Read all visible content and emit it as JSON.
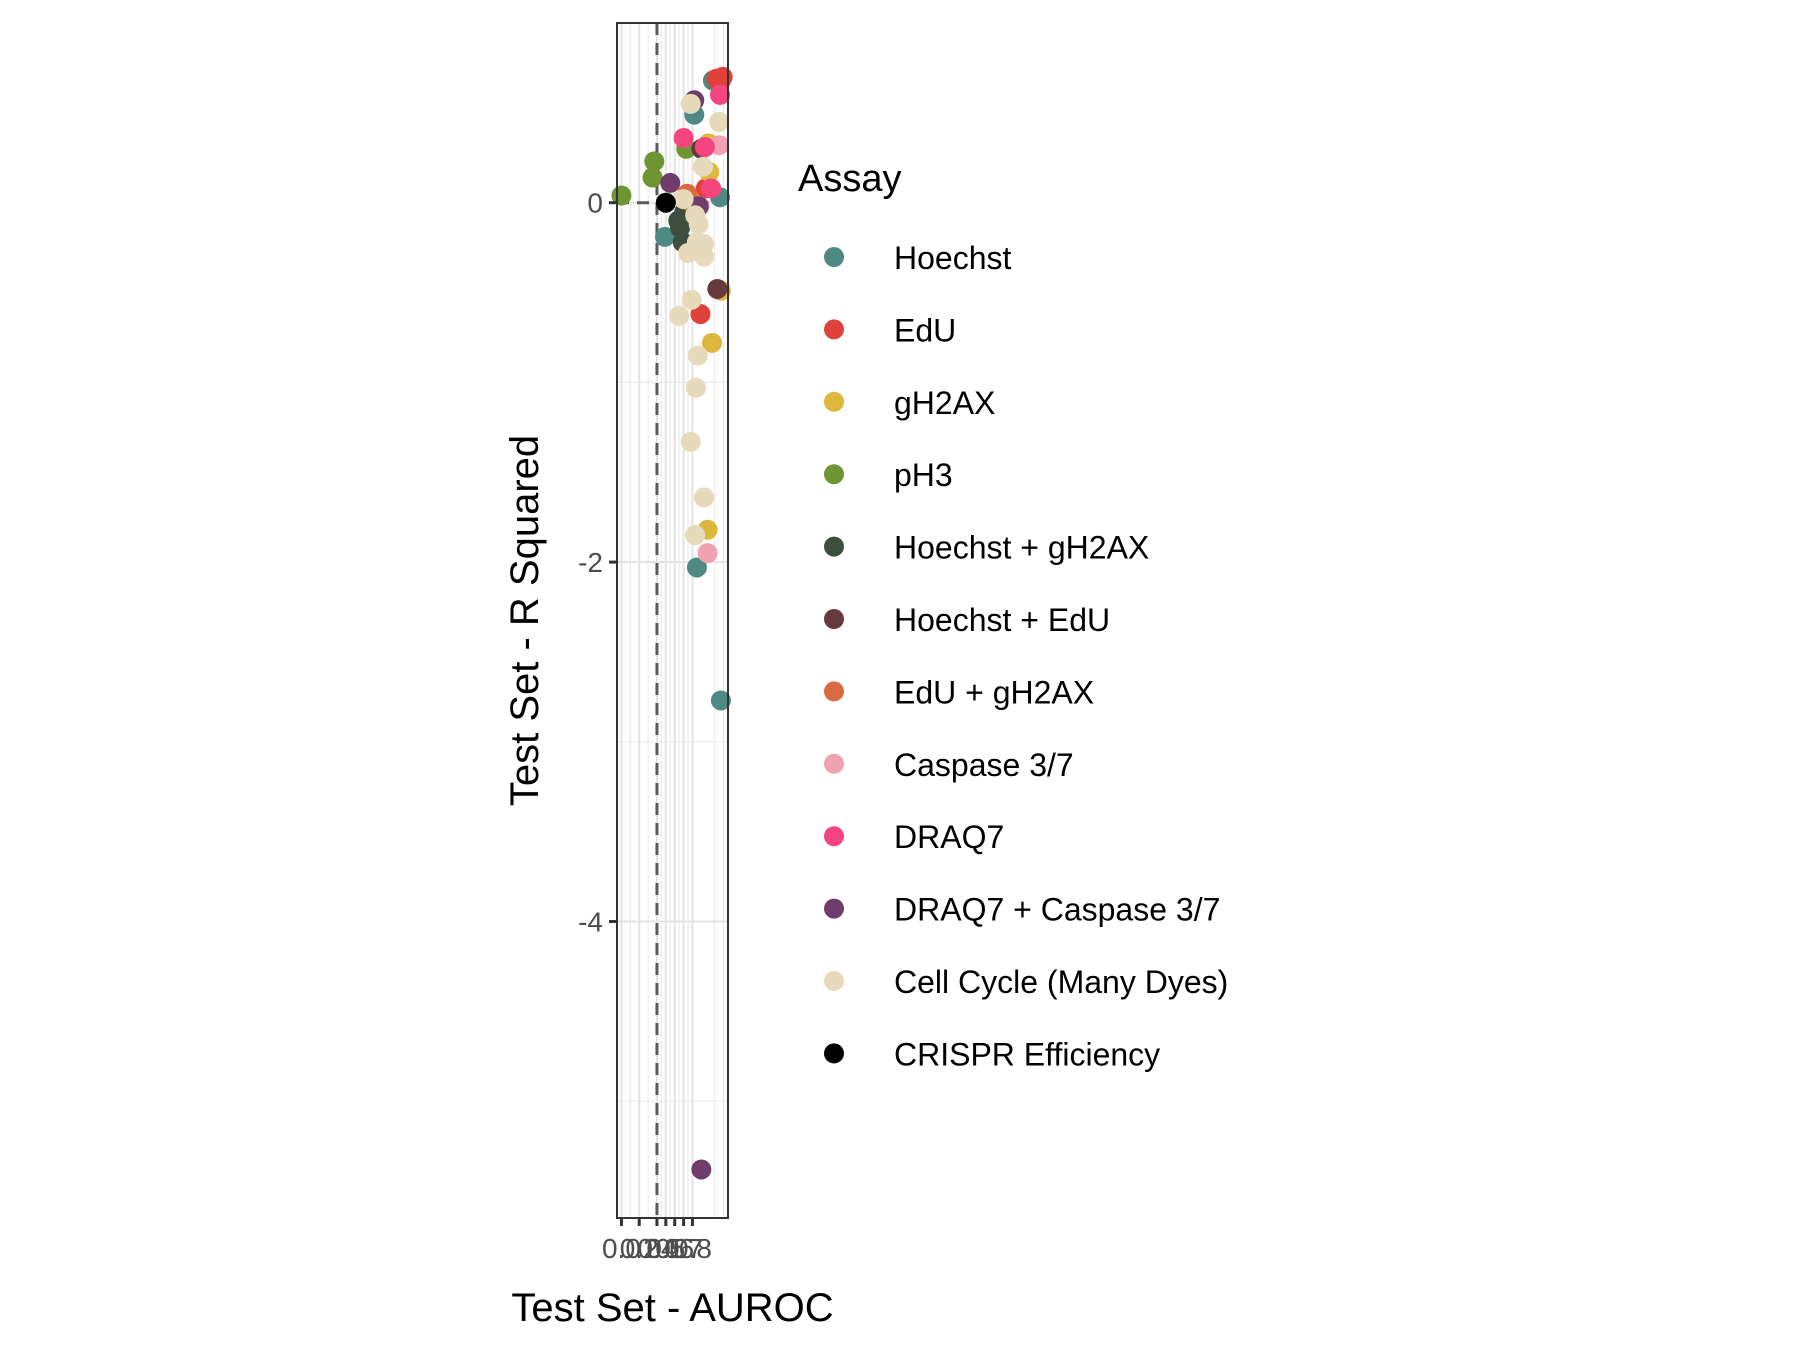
{
  "chart_data": {
    "type": "scatter",
    "xlabel": "Test Set - AUROC",
    "ylabel": "Test Set - R Squared",
    "x_ticks": [
      {
        "value": 0.0,
        "label": "0.0"
      },
      {
        "value": 0.2,
        "label": "0.2"
      },
      {
        "value": 0.4,
        "label": "0.4"
      },
      {
        "value": 0.5,
        "label": "0.5"
      },
      {
        "value": 0.6,
        "label": "0.6"
      },
      {
        "value": 0.7,
        "label": "0.7"
      },
      {
        "value": 0.8,
        "label": "0.8"
      }
    ],
    "xlim": [
      -0.05,
      1.2
    ],
    "y_ticks": [
      {
        "value": 0,
        "label": "0"
      },
      {
        "value": -2,
        "label": "-2"
      },
      {
        "value": -4,
        "label": "-4"
      }
    ],
    "ylim": [
      -5.65,
      1.0
    ],
    "reference_lines": {
      "x": 0.4,
      "y": 0,
      "style": "dashed"
    },
    "grid": true,
    "legend": {
      "title": "Assay",
      "position": "right"
    },
    "series": [
      {
        "name": "Hoechst",
        "color": "#4E8A83",
        "points": [
          [
            0.49,
            -0.19
          ],
          [
            0.82,
            0.49
          ],
          [
            1.03,
            0.68
          ],
          [
            1.11,
            0.03
          ],
          [
            0.85,
            -2.03
          ],
          [
            1.12,
            -2.77
          ]
        ]
      },
      {
        "name": "EdU",
        "color": "#E0413A",
        "points": [
          [
            0.89,
            -0.62
          ],
          [
            1.12,
            0.68
          ],
          [
            1.14,
            0.7
          ],
          [
            1.07,
            0.69
          ],
          [
            0.95,
            0.08
          ]
        ]
      },
      {
        "name": "gH2AX",
        "color": "#DDB83C",
        "points": [
          [
            1.02,
            -0.78
          ],
          [
            0.97,
            -1.82
          ],
          [
            1.12,
            -0.49
          ],
          [
            0.99,
            0.17
          ],
          [
            0.98,
            0.33
          ]
        ]
      },
      {
        "name": "pH3",
        "color": "#6E9531",
        "points": [
          [
            0.0,
            0.04
          ],
          [
            0.35,
            0.14
          ],
          [
            0.37,
            0.23
          ],
          [
            0.73,
            0.3
          ]
        ]
      },
      {
        "name": "Hoechst + gH2AX",
        "color": "#3E4E3E",
        "points": [
          [
            0.64,
            -0.1
          ],
          [
            0.69,
            -0.22
          ],
          [
            0.71,
            -0.05
          ],
          [
            0.66,
            -0.14
          ]
        ]
      },
      {
        "name": "Hoechst + EdU",
        "color": "#66393F",
        "points": [
          [
            1.08,
            -0.48
          ],
          [
            0.9,
            0.3
          ]
        ]
      },
      {
        "name": "EdU + gH2AX",
        "color": "#DA6A40",
        "points": [
          [
            0.74,
            0.05
          ],
          [
            0.79,
            0.0
          ]
        ]
      },
      {
        "name": "Caspase 3/7",
        "color": "#F1A2B2",
        "points": [
          [
            0.97,
            -1.95
          ],
          [
            1.1,
            0.32
          ],
          [
            0.88,
            -0.02
          ]
        ]
      },
      {
        "name": "DRAQ7",
        "color": "#F5457E",
        "points": [
          [
            0.7,
            0.36
          ],
          [
            0.94,
            0.31
          ],
          [
            1.11,
            0.6
          ],
          [
            1.01,
            0.08
          ]
        ]
      },
      {
        "name": "DRAQ7 + Caspase 3/7",
        "color": "#6E3D6B",
        "points": [
          [
            0.55,
            0.11
          ],
          [
            0.82,
            0.57
          ],
          [
            0.87,
            -0.02
          ],
          [
            0.9,
            -5.38
          ]
        ]
      },
      {
        "name": "Cell Cycle (Many Dyes)",
        "color": "#E6DABB",
        "points": [
          [
            0.78,
            0.55
          ],
          [
            0.83,
            -0.07
          ],
          [
            0.87,
            -0.12
          ],
          [
            0.85,
            -0.22
          ],
          [
            0.93,
            -0.23
          ],
          [
            0.75,
            -0.28
          ],
          [
            0.93,
            -0.3
          ],
          [
            0.79,
            -0.54
          ],
          [
            0.65,
            -0.63
          ],
          [
            0.86,
            -0.85
          ],
          [
            0.84,
            -1.03
          ],
          [
            0.78,
            -1.33
          ],
          [
            0.93,
            -1.64
          ],
          [
            0.83,
            -1.85
          ],
          [
            0.7,
            0.02
          ],
          [
            1.1,
            0.45
          ],
          [
            0.92,
            0.2
          ]
        ]
      },
      {
        "name": "CRISPR Efficiency",
        "color": "#000000",
        "points": [
          [
            0.5,
            0.0
          ]
        ]
      }
    ]
  }
}
